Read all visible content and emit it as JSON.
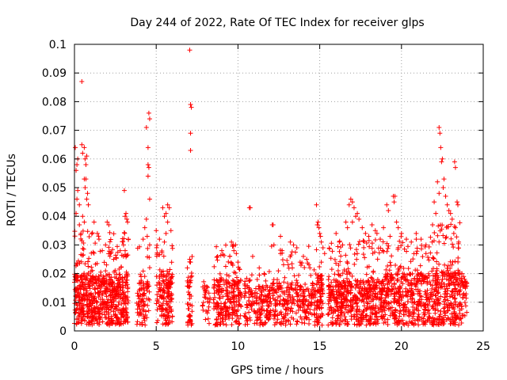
{
  "chart_data": {
    "type": "scatter",
    "title": "Day 244 of 2022, Rate Of TEC Index for receiver glps",
    "xlabel": "GPS time / hours",
    "ylabel": "ROTI / TECUs",
    "xlim": [
      0,
      25
    ],
    "ylim": [
      0,
      0.1
    ],
    "x_ticks": [
      0,
      5,
      10,
      15,
      20,
      25
    ],
    "x_tick_labels": [
      "0",
      "5",
      "10",
      "15",
      "20",
      "25"
    ],
    "y_ticks": [
      0,
      0.01,
      0.02,
      0.03,
      0.04,
      0.05,
      0.06,
      0.07,
      0.08,
      0.09,
      0.1
    ],
    "y_tick_labels": [
      "0",
      "0.01",
      "0.02",
      "0.03",
      "0.04",
      "0.05",
      "0.06",
      "0.07",
      "0.08",
      "0.09",
      "0.1"
    ],
    "grid": true,
    "marker": "+",
    "series_color": "#ff0000",
    "bands": [
      {
        "x_start": 0.0,
        "x_end": 3.3,
        "base_max": 0.02,
        "tail_max": 0.035,
        "count": 650
      },
      {
        "x_start": 3.8,
        "x_end": 4.6,
        "base_max": 0.018,
        "tail_max": 0.03,
        "count": 90
      },
      {
        "x_start": 5.0,
        "x_end": 6.0,
        "base_max": 0.02,
        "tail_max": 0.03,
        "count": 160
      },
      {
        "x_start": 6.9,
        "x_end": 7.2,
        "base_max": 0.02,
        "tail_max": 0.026,
        "count": 45
      },
      {
        "x_start": 7.8,
        "x_end": 8.3,
        "base_max": 0.016,
        "tail_max": 0.02,
        "count": 30
      },
      {
        "x_start": 8.5,
        "x_end": 10.2,
        "base_max": 0.018,
        "tail_max": 0.03,
        "count": 240
      },
      {
        "x_start": 10.4,
        "x_end": 12.0,
        "base_max": 0.016,
        "tail_max": 0.022,
        "count": 170
      },
      {
        "x_start": 12.0,
        "x_end": 14.7,
        "base_max": 0.017,
        "tail_max": 0.03,
        "count": 260
      },
      {
        "x_start": 14.7,
        "x_end": 15.2,
        "base_max": 0.02,
        "tail_max": 0.038,
        "count": 80
      },
      {
        "x_start": 15.5,
        "x_end": 19.0,
        "base_max": 0.018,
        "tail_max": 0.032,
        "count": 520
      },
      {
        "x_start": 19.0,
        "x_end": 21.8,
        "base_max": 0.02,
        "tail_max": 0.033,
        "count": 400
      },
      {
        "x_start": 21.8,
        "x_end": 23.6,
        "base_max": 0.022,
        "tail_max": 0.038,
        "count": 300
      },
      {
        "x_start": 23.6,
        "x_end": 24.0,
        "base_max": 0.018,
        "tail_max": 0.02,
        "count": 40
      }
    ],
    "points": [
      [
        0.05,
        0.064
      ],
      [
        0.1,
        0.056
      ],
      [
        0.15,
        0.058
      ],
      [
        0.2,
        0.06
      ],
      [
        0.15,
        0.046
      ],
      [
        0.2,
        0.049
      ],
      [
        0.3,
        0.044
      ],
      [
        0.3,
        0.037
      ],
      [
        0.1,
        0.041
      ],
      [
        0.45,
        0.087
      ],
      [
        0.45,
        0.065
      ],
      [
        0.5,
        0.062
      ],
      [
        0.6,
        0.064
      ],
      [
        0.65,
        0.06
      ],
      [
        0.7,
        0.058
      ],
      [
        0.75,
        0.061
      ],
      [
        0.6,
        0.053
      ],
      [
        0.7,
        0.053
      ],
      [
        0.65,
        0.05
      ],
      [
        0.75,
        0.046
      ],
      [
        0.8,
        0.048
      ],
      [
        0.5,
        0.04
      ],
      [
        0.6,
        0.038
      ],
      [
        0.85,
        0.044
      ],
      [
        0.4,
        0.034
      ],
      [
        1.2,
        0.038
      ],
      [
        1.4,
        0.034
      ],
      [
        1.5,
        0.032
      ],
      [
        1.7,
        0.028
      ],
      [
        1.9,
        0.03
      ],
      [
        2.0,
        0.038
      ],
      [
        2.1,
        0.037
      ],
      [
        2.2,
        0.027
      ],
      [
        2.4,
        0.025
      ],
      [
        2.8,
        0.028
      ],
      [
        3.0,
        0.026
      ],
      [
        3.1,
        0.028
      ],
      [
        3.0,
        0.03
      ],
      [
        3.05,
        0.049
      ],
      [
        3.1,
        0.04
      ],
      [
        3.15,
        0.041
      ],
      [
        3.2,
        0.039
      ],
      [
        3.25,
        0.038
      ],
      [
        3.3,
        0.032
      ],
      [
        4.4,
        0.071
      ],
      [
        4.5,
        0.064
      ],
      [
        4.55,
        0.076
      ],
      [
        4.6,
        0.074
      ],
      [
        4.5,
        0.058
      ],
      [
        4.55,
        0.057
      ],
      [
        4.5,
        0.054
      ],
      [
        4.6,
        0.046
      ],
      [
        4.4,
        0.039
      ],
      [
        4.3,
        0.036
      ],
      [
        4.45,
        0.033
      ],
      [
        4.2,
        0.032
      ],
      [
        4.6,
        0.03
      ],
      [
        5.0,
        0.035
      ],
      [
        5.2,
        0.032
      ],
      [
        5.4,
        0.043
      ],
      [
        5.5,
        0.04
      ],
      [
        5.6,
        0.041
      ],
      [
        5.7,
        0.044
      ],
      [
        5.8,
        0.043
      ],
      [
        5.7,
        0.038
      ],
      [
        5.9,
        0.035
      ],
      [
        5.6,
        0.034
      ],
      [
        5.5,
        0.031
      ],
      [
        7.05,
        0.098
      ],
      [
        7.1,
        0.079
      ],
      [
        7.15,
        0.078
      ],
      [
        7.1,
        0.069
      ],
      [
        7.1,
        0.063
      ],
      [
        7.05,
        0.025
      ],
      [
        7.1,
        0.024
      ],
      [
        9.6,
        0.031
      ],
      [
        9.7,
        0.03
      ],
      [
        9.85,
        0.03
      ],
      [
        9.75,
        0.028
      ],
      [
        9.9,
        0.027
      ],
      [
        10.0,
        0.024
      ],
      [
        9.5,
        0.026
      ],
      [
        10.7,
        0.043
      ],
      [
        10.75,
        0.043
      ],
      [
        10.9,
        0.026
      ],
      [
        11.3,
        0.022
      ],
      [
        11.6,
        0.02
      ],
      [
        12.1,
        0.037
      ],
      [
        12.15,
        0.037
      ],
      [
        12.2,
        0.03
      ],
      [
        12.6,
        0.033
      ],
      [
        12.7,
        0.028
      ],
      [
        12.6,
        0.027
      ],
      [
        13.4,
        0.03
      ],
      [
        13.2,
        0.031
      ],
      [
        13.6,
        0.029
      ],
      [
        13.8,
        0.024
      ],
      [
        14.0,
        0.026
      ],
      [
        14.2,
        0.025
      ],
      [
        14.4,
        0.022
      ],
      [
        14.8,
        0.044
      ],
      [
        14.85,
        0.037
      ],
      [
        14.9,
        0.038
      ],
      [
        14.95,
        0.036
      ],
      [
        15.0,
        0.034
      ],
      [
        15.05,
        0.033
      ],
      [
        15.1,
        0.031
      ],
      [
        15.2,
        0.029
      ],
      [
        15.3,
        0.027
      ],
      [
        15.1,
        0.024
      ],
      [
        16.0,
        0.034
      ],
      [
        16.2,
        0.031
      ],
      [
        16.4,
        0.03
      ],
      [
        16.6,
        0.038
      ],
      [
        16.7,
        0.036
      ],
      [
        16.8,
        0.044
      ],
      [
        16.9,
        0.046
      ],
      [
        17.0,
        0.045
      ],
      [
        17.1,
        0.043
      ],
      [
        17.2,
        0.04
      ],
      [
        17.3,
        0.041
      ],
      [
        17.4,
        0.039
      ],
      [
        17.0,
        0.038
      ],
      [
        17.6,
        0.036
      ],
      [
        17.8,
        0.034
      ],
      [
        18.0,
        0.033
      ],
      [
        18.2,
        0.037
      ],
      [
        18.4,
        0.035
      ],
      [
        18.5,
        0.034
      ],
      [
        18.7,
        0.032
      ],
      [
        18.9,
        0.036
      ],
      [
        19.1,
        0.044
      ],
      [
        19.2,
        0.042
      ],
      [
        19.5,
        0.047
      ],
      [
        19.55,
        0.045
      ],
      [
        19.6,
        0.047
      ],
      [
        19.7,
        0.038
      ],
      [
        19.8,
        0.036
      ],
      [
        19.3,
        0.033
      ],
      [
        20.0,
        0.034
      ],
      [
        20.3,
        0.032
      ],
      [
        20.6,
        0.031
      ],
      [
        20.9,
        0.034
      ],
      [
        21.2,
        0.032
      ],
      [
        21.5,
        0.03
      ],
      [
        22.3,
        0.071
      ],
      [
        22.35,
        0.069
      ],
      [
        22.4,
        0.064
      ],
      [
        22.45,
        0.059
      ],
      [
        22.5,
        0.06
      ],
      [
        22.6,
        0.053
      ],
      [
        22.55,
        0.05
      ],
      [
        22.2,
        0.052
      ],
      [
        22.3,
        0.048
      ],
      [
        22.7,
        0.047
      ],
      [
        22.0,
        0.045
      ],
      [
        22.8,
        0.044
      ],
      [
        22.9,
        0.042
      ],
      [
        23.0,
        0.041
      ],
      [
        23.1,
        0.039
      ],
      [
        23.2,
        0.034
      ],
      [
        23.3,
        0.036
      ],
      [
        23.25,
        0.059
      ],
      [
        23.3,
        0.057
      ],
      [
        23.4,
        0.045
      ],
      [
        23.45,
        0.044
      ],
      [
        23.5,
        0.031
      ],
      [
        22.1,
        0.041
      ],
      [
        21.9,
        0.037
      ],
      [
        23.7,
        0.02
      ],
      [
        23.8,
        0.019
      ],
      [
        23.9,
        0.017
      ]
    ]
  }
}
